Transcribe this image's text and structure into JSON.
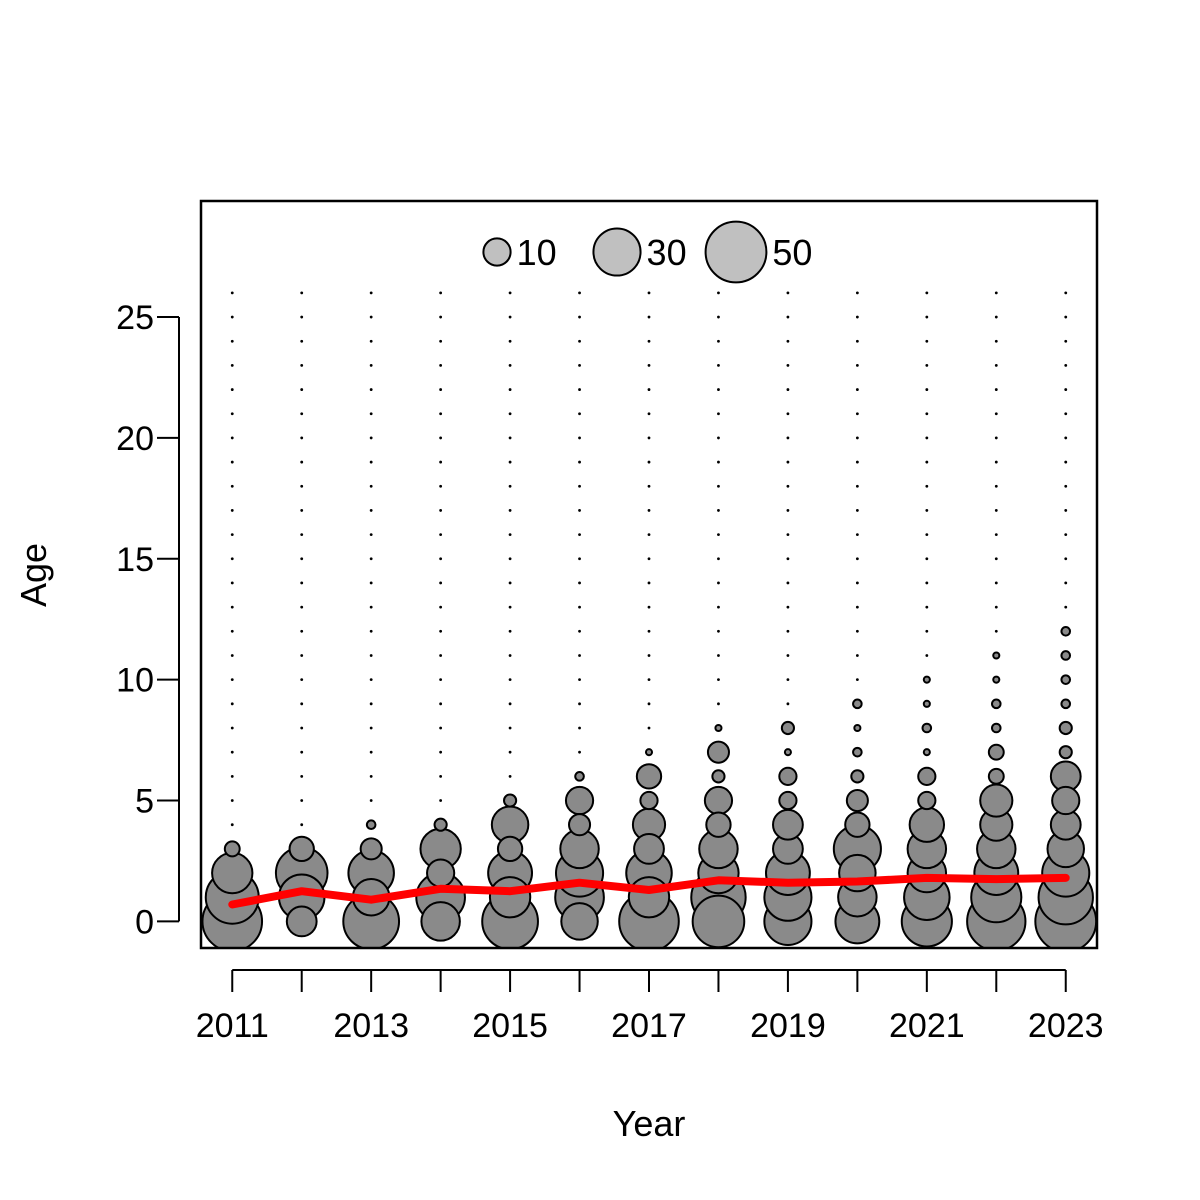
{
  "chart_data": {
    "type": "scatter",
    "subtype": "bubble",
    "xlabel": "Year",
    "ylabel": "Age",
    "xlim": [
      2010.55,
      2023.45
    ],
    "ylim": [
      -1.1,
      29.8
    ],
    "x_ticks": [
      2011,
      2012,
      2013,
      2014,
      2015,
      2016,
      2017,
      2018,
      2019,
      2020,
      2021,
      2022,
      2023
    ],
    "x_tick_labels": [
      "2011",
      "",
      "2013",
      "",
      "2015",
      "",
      "2017",
      "",
      "2019",
      "",
      "2021",
      "",
      "2023"
    ],
    "y_ticks": [
      0,
      5,
      10,
      15,
      20,
      25
    ],
    "y_tick_labels": [
      "0",
      "5",
      "10",
      "15",
      "20",
      "25"
    ],
    "grid": false,
    "background_dot_ages": [
      0,
      1,
      2,
      3,
      4,
      5,
      6,
      7,
      8,
      9,
      10,
      11,
      12,
      13,
      14,
      15,
      16,
      17,
      18,
      19,
      20,
      21,
      22,
      23,
      24,
      25,
      26
    ],
    "legend": {
      "placement": "top-center",
      "entries": [
        {
          "label": "10",
          "value": 10
        },
        {
          "label": "30",
          "value": 30
        },
        {
          "label": "50",
          "value": 50
        }
      ]
    },
    "colors": {
      "bubble_fill": "#8a8a8a",
      "legend_fill": "#c0c0c0",
      "outline": "#000000",
      "mean_line": "#ff0000"
    },
    "bubbles": [
      {
        "year": 2011,
        "values": [
          48,
          38,
          22,
          3
        ]
      },
      {
        "year": 2012,
        "values": [
          12,
          28,
          36,
          8
        ]
      },
      {
        "year": 2013,
        "values": [
          42,
          18,
          28,
          6,
          1
        ]
      },
      {
        "year": 2014,
        "values": [
          20,
          32,
          10,
          22,
          2
        ]
      },
      {
        "year": 2015,
        "values": [
          42,
          22,
          26,
          8,
          18,
          2
        ]
      },
      {
        "year": 2016,
        "values": [
          18,
          32,
          30,
          20,
          6,
          10,
          1
        ]
      },
      {
        "year": 2017,
        "values": [
          48,
          22,
          28,
          12,
          14,
          4,
          8,
          0.5
        ]
      },
      {
        "year": 2018,
        "values": [
          36,
          40,
          22,
          20,
          8,
          10,
          2,
          6,
          0.5
        ]
      },
      {
        "year": 2019,
        "values": [
          30,
          30,
          26,
          12,
          12,
          4,
          4,
          0.5,
          2
        ]
      },
      {
        "year": 2020,
        "values": [
          26,
          20,
          18,
          30,
          8,
          6,
          2,
          1,
          0.5,
          1
        ]
      },
      {
        "year": 2021,
        "values": [
          34,
          28,
          20,
          20,
          16,
          4,
          4,
          0.5,
          1,
          0.5,
          0.5
        ]
      },
      {
        "year": 2022,
        "values": [
          46,
          34,
          26,
          20,
          14,
          14,
          3,
          3,
          1,
          1,
          0.5,
          0.5
        ]
      },
      {
        "year": 2023,
        "values": [
          50,
          40,
          30,
          18,
          12,
          10,
          12,
          2,
          2,
          1,
          1,
          1,
          1
        ]
      }
    ],
    "mean_age_line": {
      "x": [
        2011,
        2012,
        2013,
        2014,
        2015,
        2016,
        2017,
        2018,
        2019,
        2020,
        2021,
        2022,
        2023
      ],
      "y": [
        0.7,
        1.25,
        0.9,
        1.35,
        1.25,
        1.6,
        1.3,
        1.7,
        1.6,
        1.65,
        1.8,
        1.75,
        1.8
      ]
    }
  }
}
